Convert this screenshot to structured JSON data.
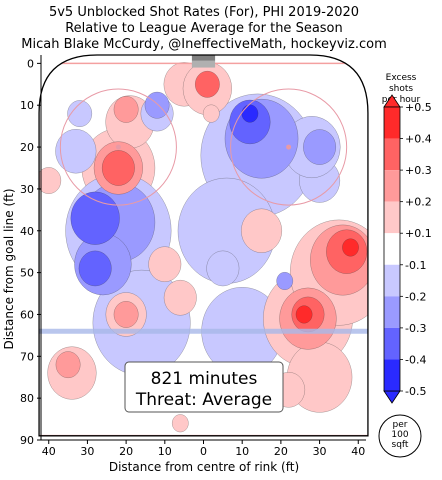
{
  "chart_data": {
    "type": "heatmap",
    "title_lines": [
      "5v5 Unblocked Shot Rates (For), PHI 2019-2020",
      "Relative to League Average for the Season",
      "Micah Blake McCurdy, @IneffectiveMath, hockeyviz.com"
    ],
    "xlabel": "Distance from centre of rink (ft)",
    "ylabel": "Distance from goal line (ft)",
    "x_ticks": [
      40,
      30,
      20,
      10,
      0,
      10,
      20,
      30,
      40
    ],
    "y_ticks": [
      0,
      10,
      20,
      30,
      40,
      50,
      60,
      70,
      80,
      90
    ],
    "xlim": [
      -42,
      42
    ],
    "ylim": [
      90,
      -2
    ],
    "colorbar": {
      "title_lines": [
        "Excess",
        "shots",
        "per hour"
      ],
      "levels": [
        "+0.5",
        "+0.4",
        "+0.3",
        "+0.2",
        "+0.1",
        "-0.1",
        "-0.2",
        "-0.3",
        "-0.4",
        "-0.5"
      ],
      "colors": [
        "#ff2a2a",
        "#ff6363",
        "#ff9a9a",
        "#ffc8c8",
        "#ffffff",
        "#c8c8ff",
        "#9a9aff",
        "#6363ff",
        "#2a2aff"
      ],
      "unit_lines": [
        "per",
        "100",
        "sqft"
      ]
    },
    "annotation_lines": [
      "821 minutes",
      "Threat: Average"
    ],
    "blobs": [
      {
        "x": -22,
        "y": 25,
        "r": 4,
        "v": 0.35
      },
      {
        "x": -22,
        "y": 25,
        "r": 6,
        "v": 0.25
      },
      {
        "x": -22,
        "y": 25,
        "r": 9,
        "v": 0.12
      },
      {
        "x": -20,
        "y": 11,
        "r": 3,
        "v": 0.28
      },
      {
        "x": -19,
        "y": 14,
        "r": 6,
        "v": 0.13
      },
      {
        "x": -32,
        "y": 12,
        "r": 3,
        "v": -0.15
      },
      {
        "x": -33,
        "y": 21,
        "r": 5,
        "v": -0.13
      },
      {
        "x": -40,
        "y": 28,
        "r": 3,
        "v": 0.12
      },
      {
        "x": -12,
        "y": 10,
        "r": 3,
        "v": -0.25
      },
      {
        "x": -12,
        "y": 12,
        "r": 4,
        "v": -0.13
      },
      {
        "x": -5,
        "y": 5,
        "r": 5,
        "v": 0.13
      },
      {
        "x": 1,
        "y": 5,
        "r": 3,
        "v": 0.32
      },
      {
        "x": 1,
        "y": 6,
        "r": 6,
        "v": 0.14
      },
      {
        "x": 2,
        "y": 12,
        "r": 2,
        "v": 0.15
      },
      {
        "x": -28,
        "y": 37,
        "r": 6,
        "v": -0.3
      },
      {
        "x": -22,
        "y": 38,
        "r": 9,
        "v": -0.2
      },
      {
        "x": -22,
        "y": 40,
        "r": 13,
        "v": -0.12
      },
      {
        "x": -28,
        "y": 49,
        "r": 4,
        "v": -0.35
      },
      {
        "x": -26,
        "y": 48,
        "r": 7,
        "v": -0.22
      },
      {
        "x": 12,
        "y": 12,
        "r": 2,
        "v": -0.45
      },
      {
        "x": 12,
        "y": 14,
        "r": 5,
        "v": -0.3
      },
      {
        "x": 15,
        "y": 18,
        "r": 9,
        "v": -0.2
      },
      {
        "x": 14,
        "y": 22,
        "r": 14,
        "v": -0.12
      },
      {
        "x": 30,
        "y": 20,
        "r": 4,
        "v": -0.25
      },
      {
        "x": 28,
        "y": 20,
        "r": 7,
        "v": -0.14
      },
      {
        "x": 6,
        "y": 40,
        "r": 12,
        "v": -0.12
      },
      {
        "x": -16,
        "y": 62,
        "r": 12,
        "v": -0.12
      },
      {
        "x": 10,
        "y": 64,
        "r": 10,
        "v": -0.12
      },
      {
        "x": 5,
        "y": 49,
        "r": 4,
        "v": -0.16
      },
      {
        "x": 30,
        "y": 28,
        "r": 5,
        "v": -0.13
      },
      {
        "x": 21,
        "y": 52,
        "r": 2,
        "v": -0.22
      },
      {
        "x": 26,
        "y": 60,
        "r": 2,
        "v": 0.45
      },
      {
        "x": 27,
        "y": 60,
        "r": 4,
        "v": 0.32
      },
      {
        "x": 27,
        "y": 61,
        "r": 7,
        "v": 0.22
      },
      {
        "x": 27,
        "y": 61,
        "r": 11,
        "v": 0.12
      },
      {
        "x": 38,
        "y": 44,
        "r": 2,
        "v": 0.45
      },
      {
        "x": 37,
        "y": 45,
        "r": 5,
        "v": 0.3
      },
      {
        "x": 36,
        "y": 47,
        "r": 8,
        "v": 0.2
      },
      {
        "x": 35,
        "y": 50,
        "r": 12,
        "v": 0.12
      },
      {
        "x": 15,
        "y": 40,
        "r": 5,
        "v": 0.12
      },
      {
        "x": -10,
        "y": 48,
        "r": 4,
        "v": 0.12
      },
      {
        "x": -6,
        "y": 56,
        "r": 4,
        "v": 0.13
      },
      {
        "x": -20,
        "y": 60,
        "r": 3,
        "v": 0.2
      },
      {
        "x": -20,
        "y": 60,
        "r": 5,
        "v": 0.12
      },
      {
        "x": -35,
        "y": 72,
        "r": 3,
        "v": 0.22
      },
      {
        "x": -34,
        "y": 74,
        "r": 6,
        "v": 0.13
      },
      {
        "x": 30,
        "y": 75,
        "r": 8,
        "v": 0.12
      },
      {
        "x": -6,
        "y": 86,
        "r": 2,
        "v": 0.12
      },
      {
        "x": 22,
        "y": 78,
        "r": 4,
        "v": 0.13
      }
    ]
  }
}
